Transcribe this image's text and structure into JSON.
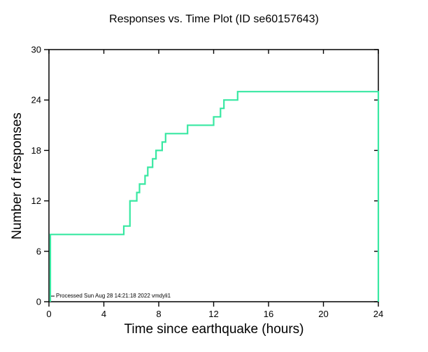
{
  "chart_data": {
    "type": "line",
    "style": "step",
    "title": "Responses vs. Time Plot (ID se60157643)",
    "xlabel": "Time since earthquake (hours)",
    "ylabel": "Number of responses",
    "annotation": "Processed Sun Aug 28 14:21:18 2022 vmdyli1",
    "xlim": [
      0,
      24
    ],
    "ylim": [
      0,
      30
    ],
    "xticks": [
      0,
      4,
      8,
      12,
      16,
      20,
      24
    ],
    "yticks": [
      0,
      6,
      12,
      18,
      24,
      30
    ],
    "grid": false,
    "legend": "none",
    "line_color": "#38e8a2",
    "axis_color": "#000000",
    "background_color": "#ffffff",
    "points": [
      [
        0.1,
        0
      ],
      [
        0.1,
        8
      ],
      [
        5.45,
        8
      ],
      [
        5.45,
        9
      ],
      [
        5.9,
        9
      ],
      [
        5.9,
        12
      ],
      [
        6.4,
        12
      ],
      [
        6.4,
        13
      ],
      [
        6.6,
        13
      ],
      [
        6.6,
        14
      ],
      [
        7.0,
        14
      ],
      [
        7.0,
        15
      ],
      [
        7.2,
        15
      ],
      [
        7.2,
        16
      ],
      [
        7.55,
        16
      ],
      [
        7.55,
        17
      ],
      [
        7.8,
        17
      ],
      [
        7.8,
        18
      ],
      [
        8.25,
        18
      ],
      [
        8.25,
        19
      ],
      [
        8.5,
        19
      ],
      [
        8.5,
        20
      ],
      [
        10.1,
        20
      ],
      [
        10.1,
        21
      ],
      [
        12.0,
        21
      ],
      [
        12.0,
        22
      ],
      [
        12.5,
        22
      ],
      [
        12.5,
        23
      ],
      [
        12.75,
        23
      ],
      [
        12.75,
        24
      ],
      [
        13.75,
        24
      ],
      [
        13.75,
        25
      ],
      [
        24,
        25
      ],
      [
        24,
        0
      ]
    ]
  }
}
